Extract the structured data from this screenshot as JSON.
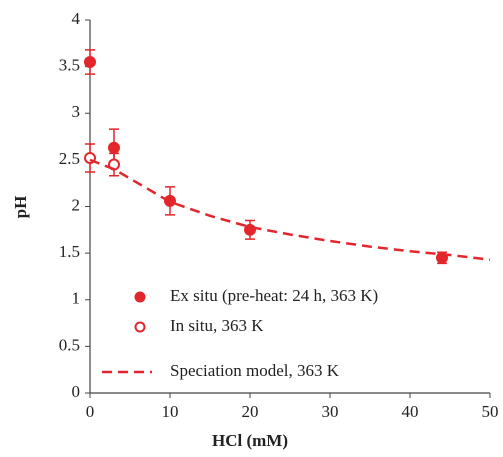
{
  "chart_data": {
    "type": "scatter",
    "xlabel": "HCl (mM)",
    "ylabel": "pH",
    "xlim": [
      0,
      50
    ],
    "xticks": [
      0,
      10,
      20,
      30,
      40,
      50
    ],
    "ylim": [
      0,
      4
    ],
    "yticks": [
      0,
      0.5,
      1,
      1.5,
      2,
      2.5,
      3,
      3.5,
      4
    ],
    "grid": false,
    "legend": "lower left",
    "series": [
      {
        "name": "Ex situ (pre-heat: 24 h, 363 K)",
        "color": "#e3262b",
        "marker": "filled",
        "x": [
          0,
          3,
          10,
          20,
          44
        ],
        "values": [
          3.55,
          2.63,
          2.06,
          1.75,
          1.45
        ],
        "errors": [
          0.13,
          0.2,
          0.15,
          0.1,
          0.06
        ]
      },
      {
        "name": "In situ, 363 K",
        "color": "#e3262b",
        "marker": "open",
        "x": [
          0,
          3
        ],
        "values": [
          2.52,
          2.45
        ],
        "errors": [
          0.15,
          0.12
        ]
      },
      {
        "name": "Speciation model, 363 K",
        "color": "#e3262b",
        "marker": "none",
        "dashed": true,
        "x": [
          0,
          3,
          5,
          10,
          15,
          20,
          25,
          30,
          35,
          40,
          45,
          50
        ],
        "values": [
          2.5,
          2.4,
          2.3,
          2.05,
          1.9,
          1.78,
          1.7,
          1.63,
          1.57,
          1.52,
          1.48,
          1.43
        ]
      }
    ]
  }
}
